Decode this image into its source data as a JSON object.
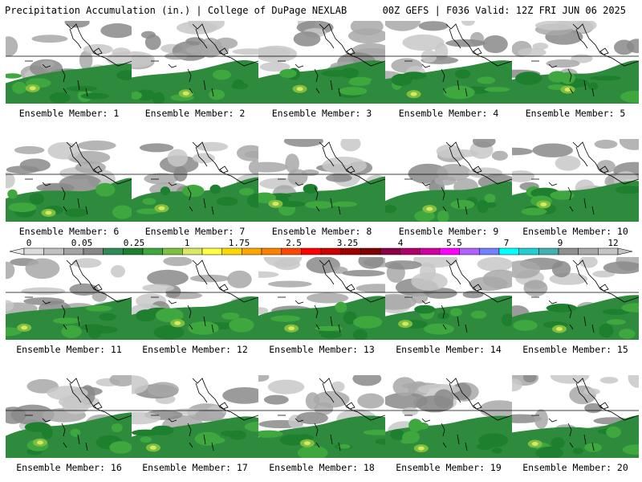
{
  "header": {
    "left": "Precipitation Accumulation (in.) | College of DuPage NEXLAB",
    "right": "00Z GEFS | F036 Valid: 12Z FRI JUN 06 2025"
  },
  "panels": [
    {
      "label": "Ensemble Member: 1"
    },
    {
      "label": "Ensemble Member: 2"
    },
    {
      "label": "Ensemble Member: 3"
    },
    {
      "label": "Ensemble Member: 4"
    },
    {
      "label": "Ensemble Member: 5"
    },
    {
      "label": "Ensemble Member: 6"
    },
    {
      "label": "Ensemble Member: 7"
    },
    {
      "label": "Ensemble Member: 8"
    },
    {
      "label": "Ensemble Member: 9"
    },
    {
      "label": "Ensemble Member: 10"
    },
    {
      "label": "Ensemble Member: 11"
    },
    {
      "label": "Ensemble Member: 12"
    },
    {
      "label": "Ensemble Member: 13"
    },
    {
      "label": "Ensemble Member: 14"
    },
    {
      "label": "Ensemble Member: 15"
    },
    {
      "label": "Ensemble Member: 16"
    },
    {
      "label": "Ensemble Member: 17"
    },
    {
      "label": "Ensemble Member: 18"
    },
    {
      "label": "Ensemble Member: 19"
    },
    {
      "label": "Ensemble Member: 20"
    }
  ],
  "colorbar": {
    "tick_labels": [
      "0",
      "0.05",
      "0.25",
      "1",
      "1.75",
      "2.5",
      "3.25",
      "4",
      "5.5",
      "7",
      "9",
      "12"
    ],
    "colors": [
      "#dcdcdc",
      "#c0c0c0",
      "#a4a4a4",
      "#888888",
      "#2e8b57",
      "#1e7f2e",
      "#3ea83e",
      "#7fbf3f",
      "#d8e860",
      "#ffff40",
      "#ffd700",
      "#ffa500",
      "#ff7f00",
      "#ff4500",
      "#ff0000",
      "#cc0000",
      "#a00000",
      "#800000",
      "#8b0045",
      "#b0006a",
      "#d000a0",
      "#ff00ff",
      "#b060ff",
      "#7080ff",
      "#00ffff",
      "#20d0d0",
      "#40b0b0",
      "#909090",
      "#a8a8a8",
      "#c4c4c4"
    ]
  }
}
